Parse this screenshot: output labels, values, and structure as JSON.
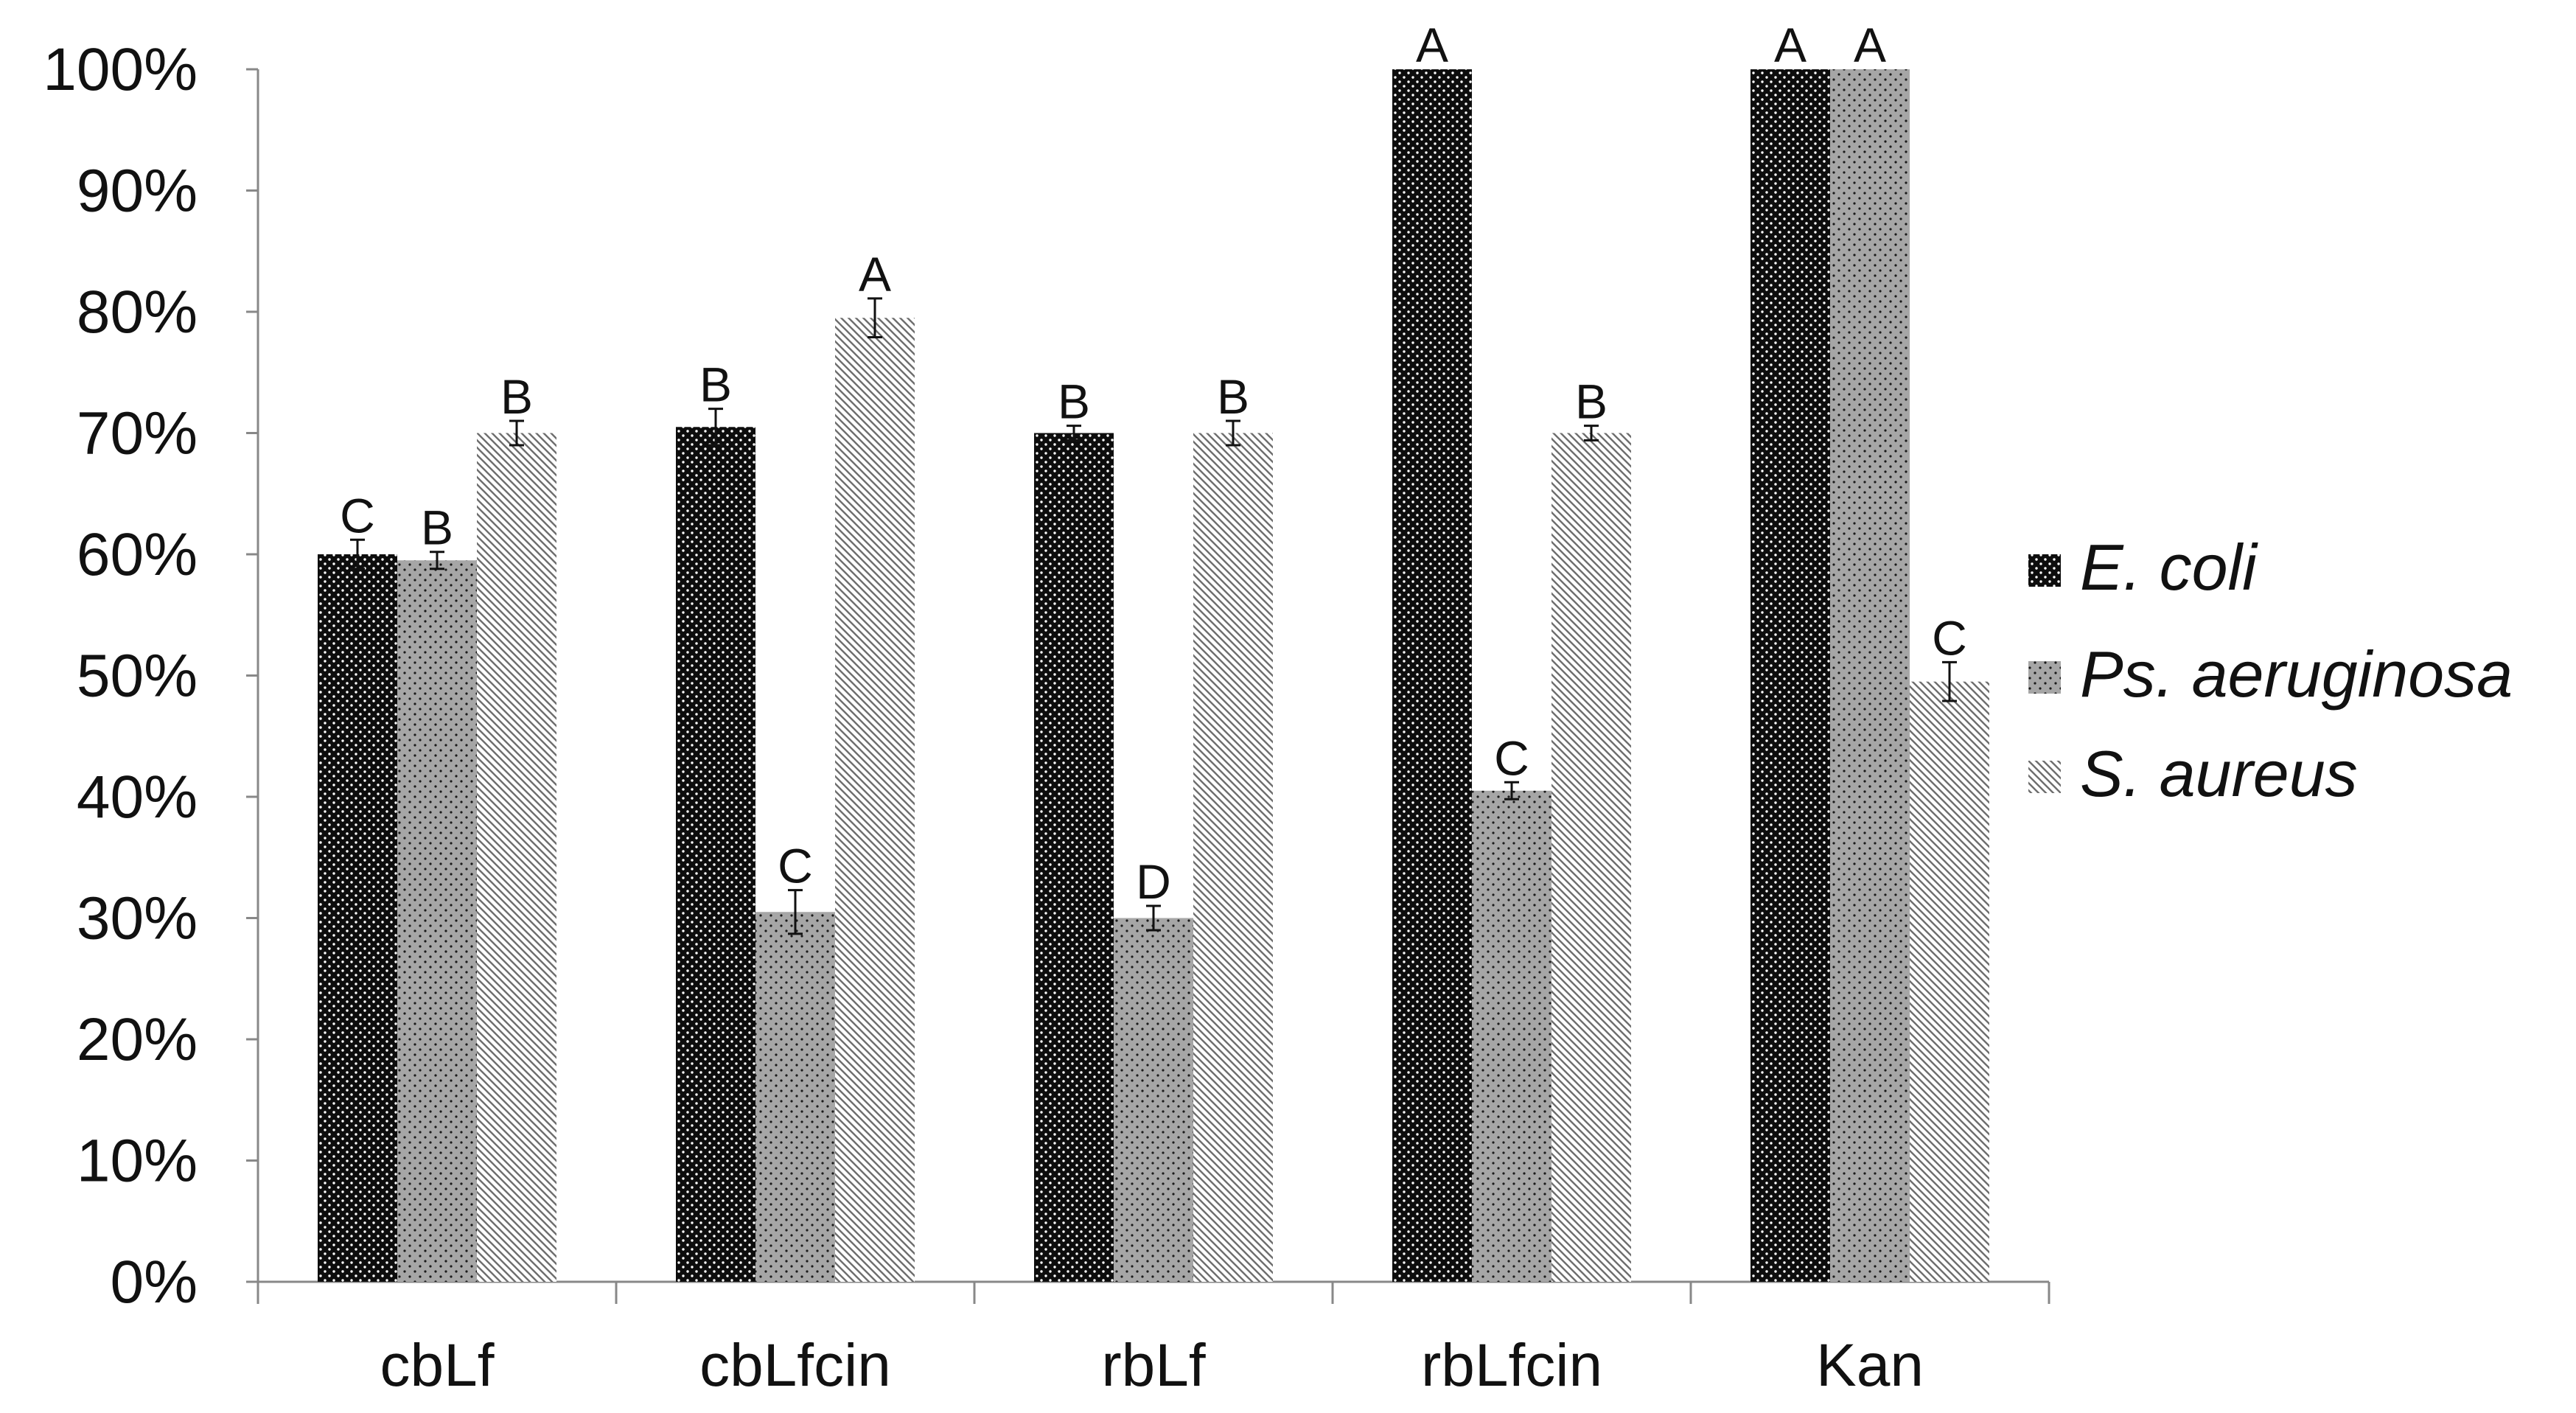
{
  "chart_data": {
    "type": "bar",
    "title": "",
    "xlabel": "",
    "ylabel": "",
    "ylim": [
      0,
      100
    ],
    "yticks": [
      "0%",
      "10%",
      "20%",
      "30%",
      "40%",
      "50%",
      "60%",
      "70%",
      "80%",
      "90%",
      "100%"
    ],
    "categories": [
      "cbLf",
      "cbLfcin",
      "rbLf",
      "rbLfcin",
      "Kan"
    ],
    "series": [
      {
        "name": "E. coli",
        "values": [
          60,
          70.5,
          70,
          100,
          100
        ],
        "errors": [
          1.2,
          1.5,
          0.6,
          0,
          0
        ],
        "letters": [
          "C",
          "B",
          "B",
          "A",
          "A"
        ],
        "pattern": "dense-dots-dark",
        "color": "#111111"
      },
      {
        "name": "Ps. aeruginosa",
        "values": [
          59.5,
          30.5,
          30,
          40.5,
          100
        ],
        "errors": [
          0.7,
          1.8,
          1.0,
          0.7,
          0
        ],
        "letters": [
          "B",
          "C",
          "D",
          "C",
          "A"
        ],
        "pattern": "sparse-dots-gray",
        "color": "#999999"
      },
      {
        "name": "S. aureus",
        "values": [
          70,
          79.5,
          70,
          70,
          49.5
        ],
        "errors": [
          1.0,
          1.6,
          1.0,
          0.6,
          1.6
        ],
        "letters": [
          "B",
          "A",
          "B",
          "B",
          "C"
        ],
        "pattern": "diagonal-hatch",
        "color": "#aaaaaa"
      }
    ],
    "legend": "right",
    "grid": false
  }
}
